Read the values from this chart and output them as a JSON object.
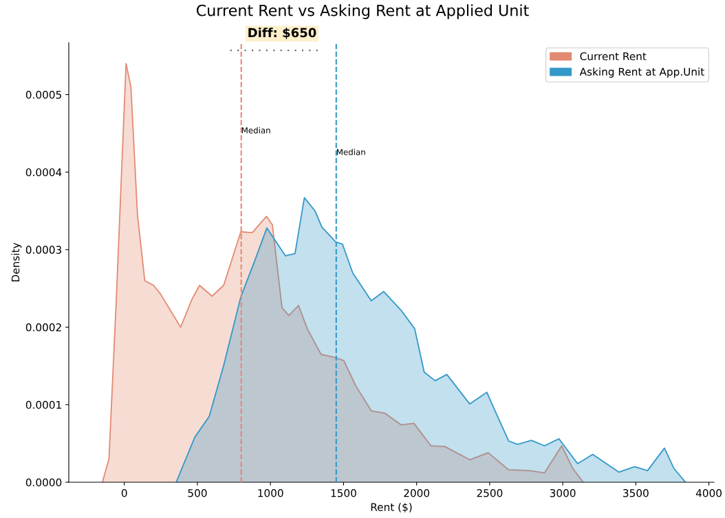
{
  "chart_data": {
    "type": "area",
    "title": "Current Rent vs Asking Rent at Applied Unit",
    "xlabel": "Rent ($)",
    "ylabel": "Density",
    "xlim": [
      -380,
      4035
    ],
    "ylim": [
      0,
      0.000567
    ],
    "xticks": [
      0,
      500,
      1000,
      1500,
      2000,
      2500,
      3000,
      3500,
      4000
    ],
    "yticks": [
      {
        "value": 0,
        "label": "0.0000"
      },
      {
        "value": 0.0001,
        "label": "0.0001"
      },
      {
        "value": 0.0002,
        "label": "0.0002"
      },
      {
        "value": 0.0003,
        "label": "0.0003"
      },
      {
        "value": 0.0004,
        "label": "0.0004"
      },
      {
        "value": 0.0005,
        "label": "0.0005"
      }
    ],
    "grid": false,
    "legend": "top right",
    "series": [
      {
        "name": "Current Rent",
        "color": "#e38a72",
        "x": [
          -150,
          -105,
          -55,
          12,
          45,
          90,
          140,
          200,
          247,
          385,
          463,
          515,
          600,
          680,
          797,
          876,
          973,
          1013,
          1079,
          1126,
          1192,
          1252,
          1346,
          1440,
          1502,
          1582,
          1690,
          1784,
          1893,
          1982,
          2098,
          2193,
          2364,
          2490,
          2630,
          2772,
          2875,
          2993,
          3068,
          3140
        ],
        "values": [
          0,
          3e-05,
          0.000235,
          0.00054,
          0.00051,
          0.000345,
          0.00026,
          0.000254,
          0.000243,
          0.0002,
          0.000236,
          0.000254,
          0.00024,
          0.000254,
          0.000323,
          0.000322,
          0.000343,
          0.000332,
          0.000225,
          0.000215,
          0.000228,
          0.000198,
          0.000165,
          0.000161,
          0.000157,
          0.000125,
          9.2e-05,
          8.9e-05,
          7.4e-05,
          7.6e-05,
          4.7e-05,
          4.6e-05,
          2.9e-05,
          3.8e-05,
          1.6e-05,
          1.5e-05,
          1.2e-05,
          4.7e-05,
          1.8e-05,
          0
        ]
      },
      {
        "name": "Asking Rent at App.Unit",
        "color": "#3498c8",
        "x": [
          355,
          482,
          581,
          679,
          797,
          895,
          975,
          1103,
          1168,
          1232,
          1305,
          1352,
          1446,
          1493,
          1563,
          1690,
          1775,
          1893,
          1987,
          2052,
          2127,
          2207,
          2363,
          2481,
          2537,
          2631,
          2692,
          2786,
          2875,
          2974,
          3102,
          3205,
          3384,
          3492,
          3580,
          3696,
          3760,
          3840
        ],
        "values": [
          0,
          5.8e-05,
          8.5e-05,
          0.00015,
          0.000239,
          0.000287,
          0.000328,
          0.000292,
          0.000295,
          0.000367,
          0.00035,
          0.000329,
          0.00031,
          0.000307,
          0.00027,
          0.000234,
          0.000246,
          0.000222,
          0.000198,
          0.000142,
          0.000131,
          0.000139,
          0.000101,
          0.000116,
          9.2e-05,
          5.3e-05,
          4.9e-05,
          5.4e-05,
          4.7e-05,
          5.6e-05,
          2.4e-05,
          3.6e-05,
          1.3e-05,
          2e-05,
          1.5e-05,
          4.4e-05,
          1.8e-05,
          0
        ]
      },
      {
        "type": "line",
        "color": "#555555",
        "line_style": "dotted",
        "x": [
          725,
          1340
        ],
        "values": [
          0.000557,
          0.000557
        ]
      }
    ],
    "ref_lines": [
      {
        "axis": "x",
        "value": 800,
        "color": "#e38a72",
        "line_style": "dashed"
      },
      {
        "axis": "x",
        "value": 1450,
        "color": "#3498c8",
        "line_style": "dashed"
      }
    ],
    "annotations": [
      {
        "text": "Median",
        "x": 800,
        "y": 0.000453
      },
      {
        "text": "Median",
        "x": 1450,
        "y": 0.000425
      },
      "Diff: $650"
    ]
  }
}
